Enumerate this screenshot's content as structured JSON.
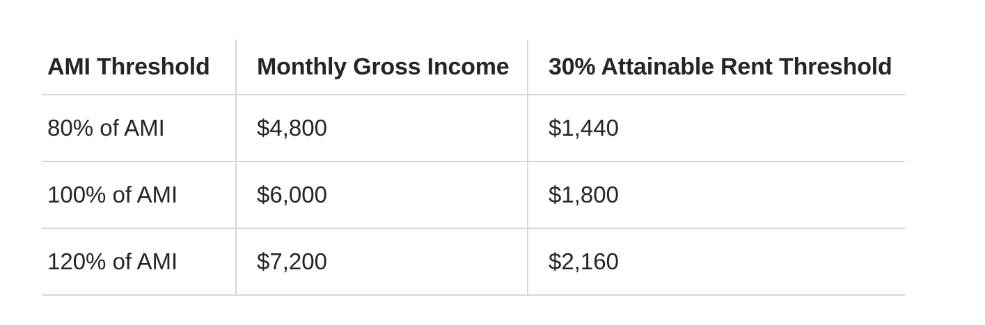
{
  "table": {
    "columns": [
      "AMI Threshold",
      "Monthly Gross Income",
      "30% Attainable Rent Threshold"
    ],
    "rows": [
      [
        "80% of AMI",
        "$4,800",
        "$1,440"
      ],
      [
        "100% of AMI",
        "$6,000",
        "$1,800"
      ],
      [
        "120% of AMI",
        "$7,200",
        "$2,160"
      ]
    ],
    "colors": {
      "text": "#242429",
      "border": "#d6d6d6",
      "background": "#ffffff"
    }
  },
  "chart_data": {
    "type": "table",
    "title": "",
    "columns": [
      "AMI Threshold",
      "Monthly Gross Income",
      "30% Attainable Rent Threshold"
    ],
    "rows": [
      {
        "ami_threshold": "80% of AMI",
        "monthly_gross_income": 4800,
        "attainable_rent_threshold_30pct": 1440
      },
      {
        "ami_threshold": "100% of AMI",
        "monthly_gross_income": 6000,
        "attainable_rent_threshold_30pct": 1800
      },
      {
        "ami_threshold": "120% of AMI",
        "monthly_gross_income": 7200,
        "attainable_rent_threshold_30pct": 2160
      }
    ]
  }
}
